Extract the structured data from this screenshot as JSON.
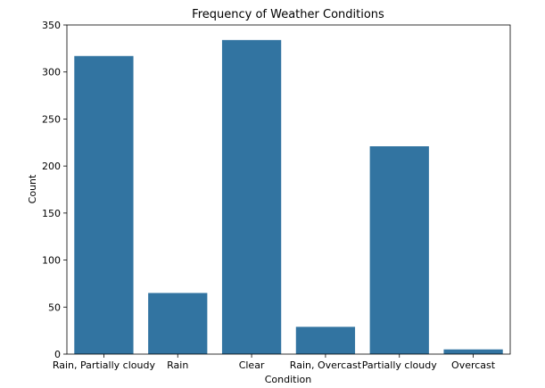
{
  "chart_data": {
    "type": "bar",
    "title": "Frequency of Weather Conditions",
    "xlabel": "Condition",
    "ylabel": "Count",
    "categories": [
      "Rain, Partially cloudy",
      "Rain",
      "Clear",
      "Rain, Overcast",
      "Partially cloudy",
      "Overcast"
    ],
    "values": [
      317,
      65,
      334,
      29,
      221,
      5
    ],
    "ylim": [
      0,
      350
    ],
    "yticks": [
      0,
      50,
      100,
      150,
      200,
      250,
      300,
      350
    ],
    "grid": false,
    "bar_color": "#3274a1"
  }
}
